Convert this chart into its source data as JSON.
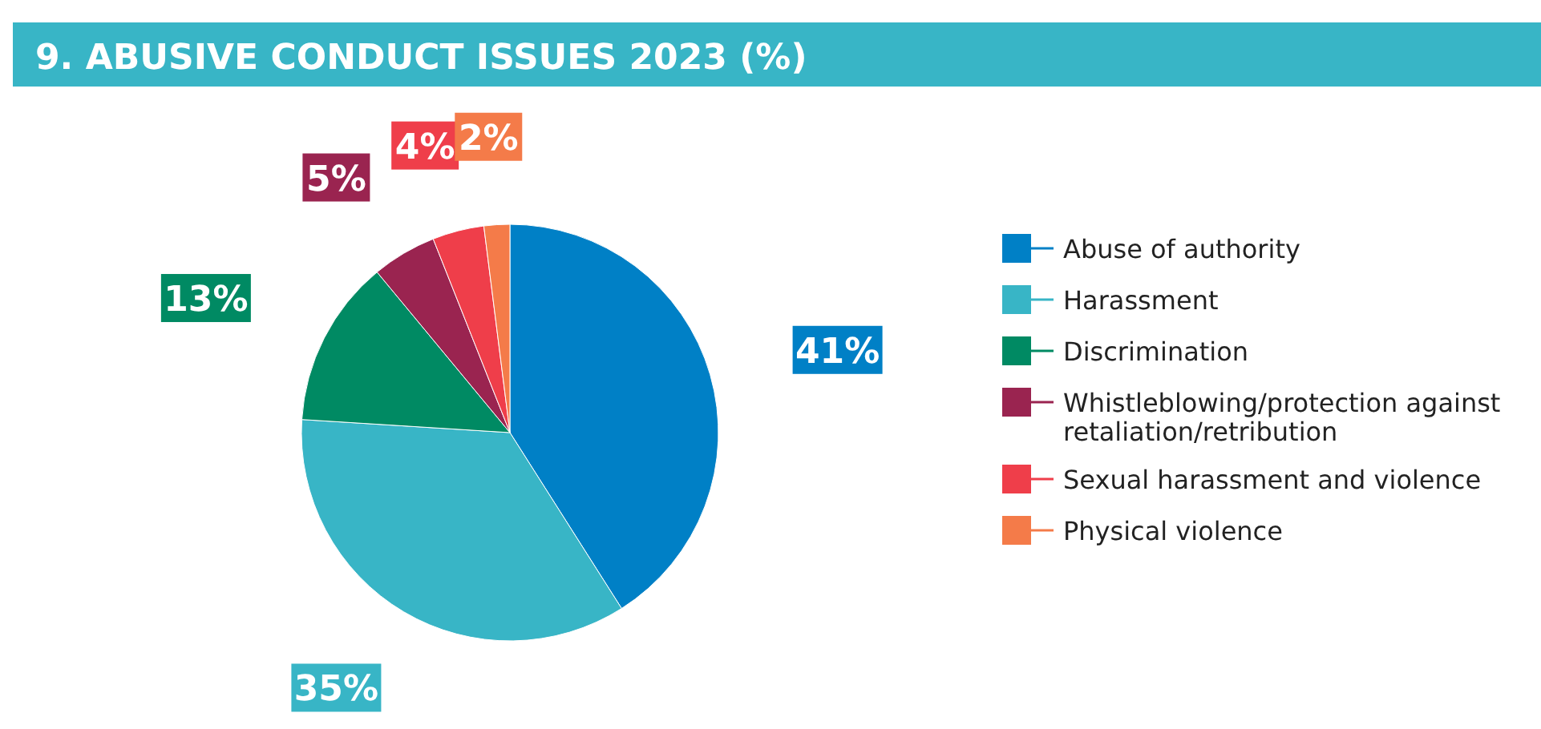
{
  "chart_data": {
    "type": "pie",
    "title": "9. ABUSIVE CONDUCT ISSUES 2023 (%)",
    "categories": [
      "Abuse of authority",
      "Harassment",
      "Discrimination",
      "Whistleblowing/protection against retaliation/retribution",
      "Sexual harassment and violence",
      "Physical violence"
    ],
    "values": [
      41,
      35,
      13,
      5,
      4,
      2
    ],
    "colors": [
      "#0080c6",
      "#38b5c6",
      "#008a63",
      "#9a2450",
      "#ef3e4a",
      "#f47b49"
    ],
    "value_labels": [
      "41%",
      "35%",
      "13%",
      "5%",
      "4%",
      "2%"
    ],
    "legend": "right"
  }
}
